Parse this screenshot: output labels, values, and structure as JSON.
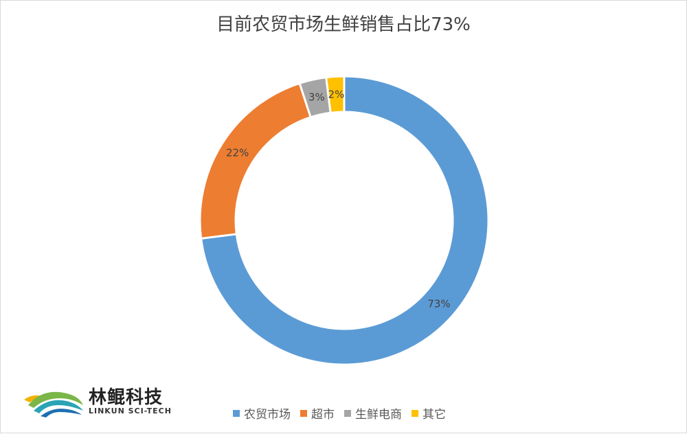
{
  "chart_data": {
    "type": "pie",
    "title": "目前农贸市场生鲜销售占比73%",
    "categories": [
      "农贸市场",
      "超市",
      "生鲜电商",
      "其它"
    ],
    "values": [
      73,
      22,
      3,
      2
    ],
    "data_labels": [
      "73%",
      "22%",
      "3%",
      "2%"
    ],
    "colors": [
      "#5b9bd5",
      "#ed7d31",
      "#a5a5a5",
      "#ffc000"
    ],
    "donut": true,
    "legend_position": "bottom"
  },
  "logo": {
    "name_cn": "林鲲科技",
    "name_en": "LINKUN SCI-TECH"
  }
}
